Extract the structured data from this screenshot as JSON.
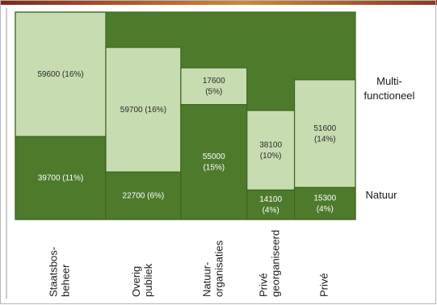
{
  "chart_data": {
    "type": "bar",
    "stacked": true,
    "variable_width": true,
    "categories": [
      "Staatsbos-\nbeheer",
      "Overig\npubliek",
      "Natuur-\norganisaties",
      "Privé\ngeorganiseerd",
      "Privé"
    ],
    "series": [
      {
        "name": "Natuur",
        "color": "#4e7a2c",
        "values": [
          39700,
          22700,
          55000,
          14100,
          15300
        ],
        "labels": [
          "39700 (11%)",
          "22700 (6%)",
          "55000\n(15%)",
          "14100\n(4%)",
          "15300\n(4%)"
        ]
      },
      {
        "name": "Multi-\nfunctioneel",
        "color": "#c7dcb0",
        "values": [
          59600,
          59700,
          17600,
          38100,
          51600
        ],
        "labels": [
          "59600 (16%)",
          "59700 (16%)",
          "17600\n(5%)",
          "38100\n(10%)",
          "51600\n(14%)"
        ]
      }
    ],
    "legend": "right"
  }
}
